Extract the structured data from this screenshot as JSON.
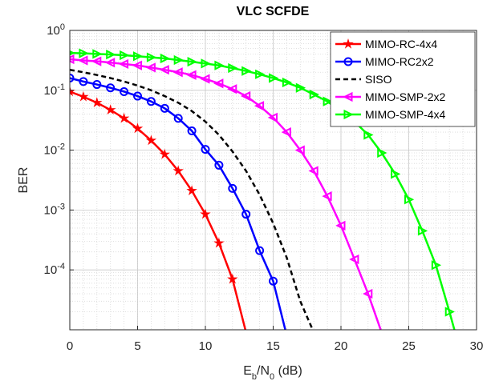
{
  "chart_data": {
    "type": "line",
    "title": "VLC SCFDE",
    "xlabel": "E_b/N_0 (dB)",
    "ylabel": "BER",
    "x": [
      0,
      1,
      2,
      3,
      4,
      5,
      6,
      7,
      8,
      9,
      10,
      11,
      12,
      13,
      14,
      15,
      16,
      17,
      18,
      19,
      20,
      21,
      22,
      23,
      24,
      25,
      26,
      27,
      28,
      29
    ],
    "xlim": [
      0,
      30
    ],
    "xticks": [
      0,
      5,
      10,
      15,
      20,
      25,
      30
    ],
    "ylim": [
      1e-05,
      1
    ],
    "log_y": true,
    "yticks": [
      {
        "value": 1,
        "label": "10^0"
      },
      {
        "value": 0.1,
        "label": "10^-1"
      },
      {
        "value": 0.01,
        "label": "10^-2"
      },
      {
        "value": 0.001,
        "label": "10^-3"
      },
      {
        "value": 0.0001,
        "label": "10^-4"
      }
    ],
    "grid": true,
    "minor_grid": true,
    "legend": "northeast",
    "series": [
      {
        "name": "MIMO-RC-4x4",
        "color": "#ff0000",
        "marker": "pentagram",
        "dash": false,
        "values": [
          0.095,
          0.078,
          0.062,
          0.047,
          0.034,
          0.023,
          0.0145,
          0.0085,
          0.0045,
          0.0021,
          0.00085,
          0.00028,
          7e-05,
          9e-06,
          null,
          null,
          null,
          null,
          null,
          null,
          null,
          null,
          null,
          null,
          null,
          null,
          null,
          null,
          null,
          null
        ]
      },
      {
        "name": "MIMO-RC2x2",
        "color": "#0000ff",
        "marker": "circle",
        "dash": false,
        "values": [
          0.16,
          0.14,
          0.125,
          0.11,
          0.095,
          0.08,
          0.065,
          0.05,
          0.034,
          0.021,
          0.0103,
          0.0056,
          0.0023,
          0.00085,
          0.00021,
          6.5e-05,
          8e-06,
          null,
          null,
          null,
          null,
          null,
          null,
          null,
          null,
          null,
          null,
          null,
          null,
          null
        ]
      },
      {
        "name": "SISO",
        "color": "#000000",
        "marker": "none",
        "dash": true,
        "values": [
          0.22,
          0.2,
          0.18,
          0.16,
          0.14,
          0.12,
          0.1,
          0.08,
          0.062,
          0.045,
          0.03,
          0.018,
          0.0095,
          0.0045,
          0.0018,
          0.0006,
          0.00016,
          3e-05,
          9e-06,
          null,
          null,
          null,
          null,
          null,
          null,
          null,
          null,
          null,
          null,
          null
        ]
      },
      {
        "name": "MIMO-SMP-2x2",
        "color": "#ff00ff",
        "marker": "triangle-left",
        "dash": false,
        "values": [
          0.33,
          0.315,
          0.305,
          0.29,
          0.275,
          0.26,
          0.24,
          0.22,
          0.2,
          0.18,
          0.155,
          0.13,
          0.105,
          0.08,
          0.055,
          0.035,
          0.02,
          0.01,
          0.0045,
          0.0017,
          0.00055,
          0.00015,
          4e-05,
          9e-06,
          null,
          null,
          null,
          null,
          null,
          null
        ]
      },
      {
        "name": "MIMO-SMP-4x4",
        "color": "#00ff00",
        "marker": "triangle-right",
        "dash": false,
        "values": [
          0.42,
          0.415,
          0.405,
          0.395,
          0.385,
          0.37,
          0.355,
          0.34,
          0.32,
          0.3,
          0.28,
          0.26,
          0.235,
          0.21,
          0.185,
          0.16,
          0.135,
          0.11,
          0.085,
          0.065,
          0.045,
          0.03,
          0.018,
          0.009,
          0.004,
          0.0015,
          0.00045,
          0.00012,
          2e-05,
          3e-06
        ]
      }
    ]
  }
}
